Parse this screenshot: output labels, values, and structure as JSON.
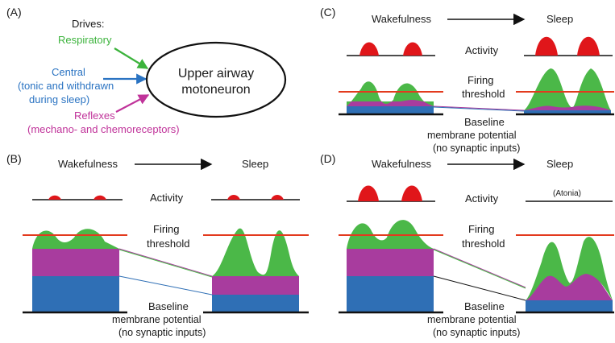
{
  "colors": {
    "respiratory": "#3cb33c",
    "central": "#2a73c2",
    "reflexes": "#c0339a",
    "activity": "#e0161a",
    "threshold": "#e33a1e",
    "green_fill": "#4bb848",
    "magenta_fill": "#a83c9e",
    "blue_fill": "#2f6fb5",
    "baseline": "#111111"
  },
  "panel_a": {
    "letter": "(A)",
    "drives_label": "Drives:",
    "respiratory": "Respiratory",
    "central_line1": "Central",
    "central_line2": "(tonic and withdrawn",
    "central_line3": "during sleep)",
    "reflexes_line1": "Reflexes",
    "reflexes_line2": "(mechano- and chemoreceptors)",
    "neuron_line1": "Upper airway",
    "neuron_line2": "motoneuron"
  },
  "panel_b": {
    "letter": "(B)",
    "wakefulness": "Wakefulness",
    "sleep": "Sleep",
    "activity": "Activity",
    "firing_line1": "Firing",
    "firing_line2": "threshold",
    "baseline_line1": "Baseline",
    "baseline_line2": "membrane potential",
    "baseline_line3": "(no synaptic inputs)"
  },
  "panel_c": {
    "letter": "(C)",
    "wakefulness": "Wakefulness",
    "sleep": "Sleep",
    "activity": "Activity",
    "firing_line1": "Firing",
    "firing_line2": "threshold",
    "baseline_line1": "Baseline",
    "baseline_line2": "membrane potential",
    "baseline_line3": "(no synaptic inputs)"
  },
  "panel_d": {
    "letter": "(D)",
    "wakefulness": "Wakefulness",
    "sleep": "Sleep",
    "activity": "Activity",
    "atonia": "(Atonia)",
    "firing_line1": "Firing",
    "firing_line2": "threshold",
    "baseline_line1": "Baseline",
    "baseline_line2": "membrane potential",
    "baseline_line3": "(no synaptic inputs)"
  }
}
